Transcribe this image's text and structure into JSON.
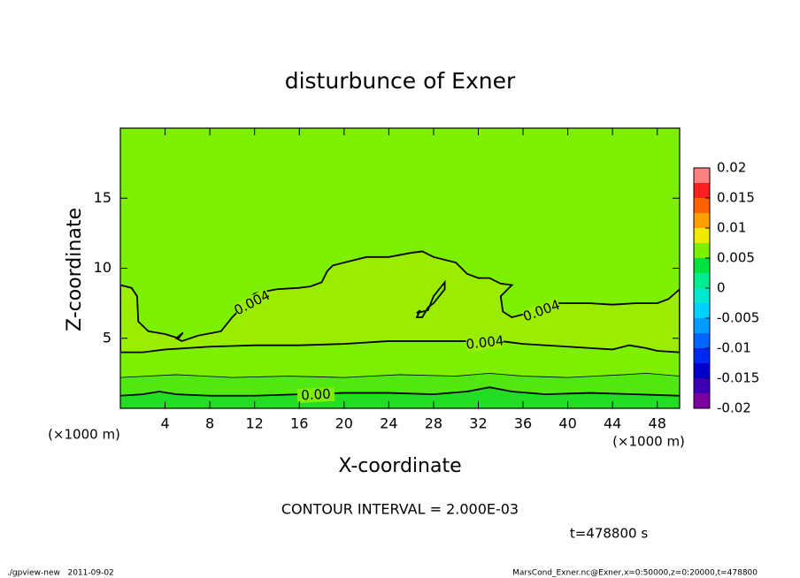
{
  "chart_data": {
    "type": "contour",
    "title": "disturbunce of Exner",
    "x_label": "X-coordinate",
    "y_label": "Z-coordinate",
    "x_unit": "(×1000 m)",
    "y_unit": "(×1000 m)",
    "xlim": [
      0,
      50
    ],
    "ylim": [
      0,
      20
    ],
    "xticks": [
      4,
      8,
      12,
      16,
      20,
      24,
      28,
      32,
      36,
      40,
      44,
      48
    ],
    "yticks": [
      5,
      10,
      15
    ],
    "background_color": "#7cf000",
    "contours": [
      {
        "fill": "#9aec00",
        "labels": [
          "0.004",
          "0.004",
          "0.004"
        ],
        "x": [
          0,
          1,
          1.5,
          1.6,
          2.5,
          4,
          5.2,
          5.6,
          5,
          5.5,
          7,
          9,
          10,
          11,
          12,
          14,
          16,
          17,
          18,
          18.5,
          19,
          20,
          22,
          24,
          26,
          27,
          28,
          30,
          31,
          32,
          33,
          34,
          35,
          34.5,
          34,
          34.2,
          35,
          36,
          37,
          38,
          40,
          42,
          44,
          46,
          48,
          49,
          50,
          50,
          48,
          47,
          45.5,
          44,
          40,
          36,
          34,
          31,
          28,
          24,
          20,
          16,
          12,
          8,
          4,
          2,
          0
        ],
        "z": [
          8.8,
          8.6,
          8,
          6.2,
          5.5,
          5.3,
          5,
          5.4,
          5.0,
          4.8,
          5.2,
          5.5,
          6.5,
          7.3,
          8.2,
          8.5,
          8.6,
          8.7,
          9.0,
          9.8,
          10.2,
          10.4,
          10.8,
          10.8,
          11.1,
          11.2,
          10.8,
          10.4,
          9.6,
          9.3,
          9.3,
          8.9,
          8.8,
          8.4,
          8.0,
          6.9,
          6.5,
          6.7,
          6.6,
          7.5,
          7.5,
          7.5,
          7.4,
          7.5,
          7.5,
          7.8,
          8.5,
          4.0,
          4.1,
          4.3,
          4.5,
          4.2,
          4.4,
          4.6,
          4.8,
          4.8,
          4.8,
          4.8,
          4.6,
          4.5,
          4.5,
          4.4,
          4.2,
          4.0,
          4.0
        ]
      },
      {
        "fill": "#7cf000",
        "x": [
          26.5,
          27.5,
          28,
          29,
          29,
          28,
          27.5,
          27,
          26.5,
          26.8,
          26.5
        ],
        "z": [
          6.8,
          7,
          8,
          9,
          8.5,
          7.5,
          7.2,
          6.5,
          6.5,
          7,
          6.8
        ]
      },
      {
        "fill_below": "#50e810",
        "x": [
          0,
          5,
          10,
          15,
          20,
          25,
          30,
          33,
          36,
          40,
          45,
          47,
          50
        ],
        "z": [
          2.2,
          2.4,
          2.2,
          2.3,
          2.2,
          2.4,
          2.3,
          2.5,
          2.3,
          2.2,
          2.4,
          2.5,
          2.3
        ]
      },
      {
        "fill_below": "#22dd22",
        "labels": [
          "0.00"
        ],
        "x": [
          0,
          2,
          3.5,
          5,
          8,
          12,
          16,
          20,
          24,
          28,
          31,
          33,
          35,
          38,
          42,
          46,
          50
        ],
        "z": [
          0.9,
          1.0,
          1.2,
          1.0,
          0.9,
          0.9,
          1.0,
          1.1,
          1.1,
          1.0,
          1.2,
          1.5,
          1.2,
          1.0,
          1.1,
          1.0,
          0.9
        ]
      }
    ],
    "colorbar": {
      "levels": [
        -0.02,
        -0.0175,
        -0.015,
        -0.0125,
        -0.01,
        -0.0075,
        -0.005,
        -0.0025,
        0,
        0.0025,
        0.005,
        0.0075,
        0.01,
        0.0125,
        0.015,
        0.0175,
        0.02
      ],
      "colors": [
        "#7a00a0",
        "#3c00b4",
        "#0000c8",
        "#0028f0",
        "#0064ff",
        "#009cff",
        "#00d0ff",
        "#00e8d0",
        "#00ec90",
        "#00e040",
        "#7cf000",
        "#f0e800",
        "#ffa000",
        "#ff6000",
        "#ff2020",
        "#ff8080"
      ],
      "ticks": [
        0.02,
        0.015,
        0.01,
        0.005,
        0,
        -0.005,
        -0.01,
        -0.015,
        -0.02
      ]
    },
    "contour_interval": "CONTOUR INTERVAL = 2.000E-03",
    "time_label": "t=478800 s",
    "footer_left": "./gpview-new   2011-09-02",
    "footer_right": "MarsCond_Exner.nc@Exner,x=0:50000,z=0:20000,t=478800"
  }
}
